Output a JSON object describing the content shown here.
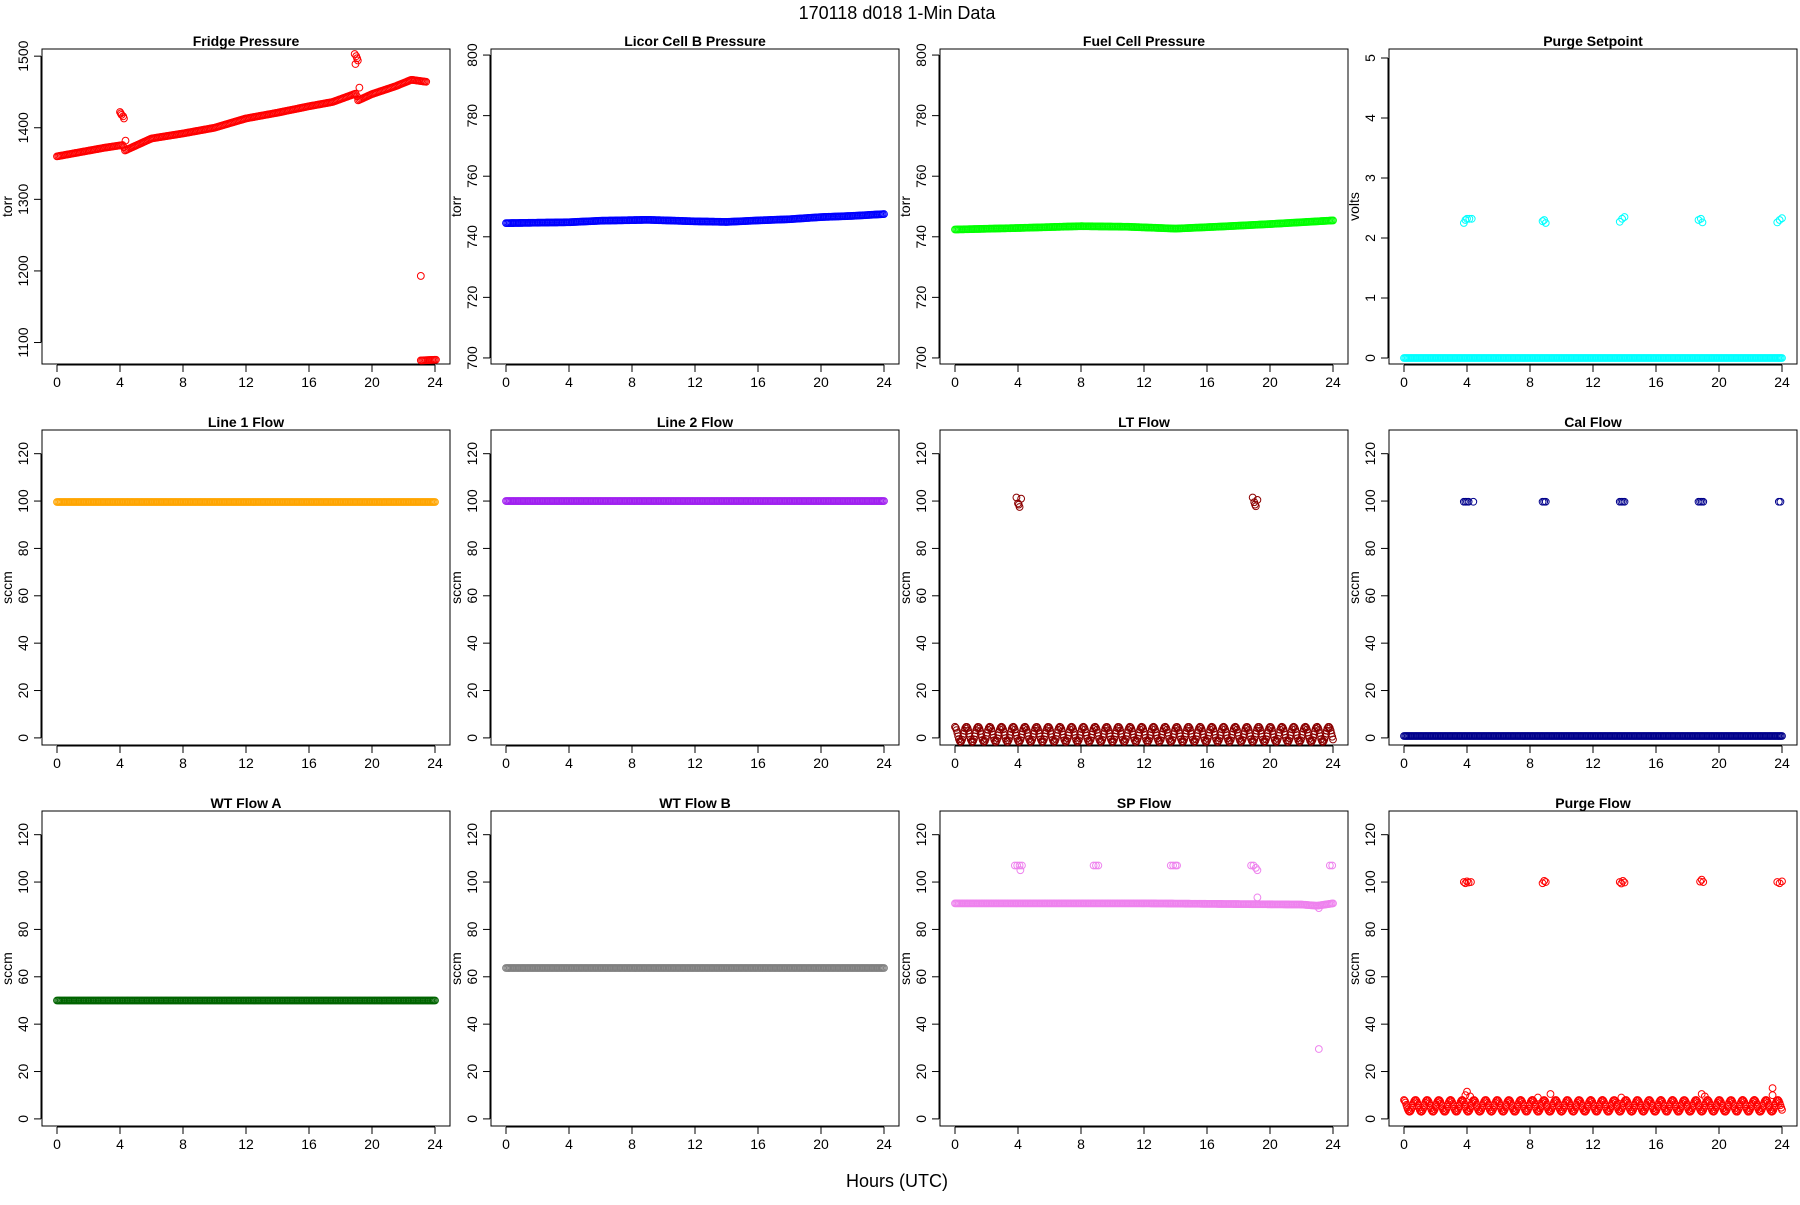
{
  "page": {
    "title": "170118    d018    1-Min Data",
    "xlabel": "Hours (UTC)"
  },
  "chart_data": [
    {
      "type": "scatter",
      "title": "Fridge Pressure",
      "ylabel": "torr",
      "xlim": [
        0,
        24
      ],
      "xticks": [
        0,
        4,
        8,
        12,
        16,
        20,
        24
      ],
      "ylim": [
        1070,
        1510
      ],
      "yticks": [
        1100,
        1200,
        1300,
        1400,
        1500
      ],
      "color": "#FF0000",
      "marker": "open-circle",
      "series": [
        {
          "mode": "dense",
          "points": [
            [
              0,
              1360
            ],
            [
              1.5,
              1366
            ],
            [
              3,
              1372
            ],
            [
              4.2,
              1376
            ],
            [
              4.3,
              1368
            ],
            [
              6,
              1385
            ],
            [
              8,
              1392
            ],
            [
              10,
              1400
            ],
            [
              12,
              1413
            ],
            [
              14,
              1421
            ],
            [
              16,
              1430
            ],
            [
              17.5,
              1436
            ],
            [
              19,
              1448
            ],
            [
              19.1,
              1438
            ],
            [
              20,
              1447
            ],
            [
              21.5,
              1458
            ],
            [
              22.5,
              1467
            ],
            [
              23.5,
              1464
            ]
          ]
        },
        {
          "mode": "dense",
          "points": [
            [
              23.1,
              1075
            ],
            [
              24.1,
              1076
            ]
          ]
        },
        {
          "mode": "points",
          "points": [
            [
              4,
              1422
            ],
            [
              4.05,
              1420
            ],
            [
              4.1,
              1418
            ],
            [
              4.2,
              1416
            ],
            [
              4.25,
              1413
            ],
            [
              4.35,
              1382
            ],
            [
              18.9,
              1503
            ],
            [
              19.0,
              1500
            ],
            [
              19.05,
              1497
            ],
            [
              19.1,
              1494
            ],
            [
              18.95,
              1489
            ],
            [
              19.2,
              1456
            ],
            [
              23.1,
              1193
            ]
          ]
        }
      ]
    },
    {
      "type": "scatter",
      "title": "Licor Cell B Pressure",
      "ylabel": "torr",
      "xlim": [
        0,
        24
      ],
      "xticks": [
        0,
        4,
        8,
        12,
        16,
        20,
        24
      ],
      "ylim": [
        698,
        802
      ],
      "yticks": [
        700,
        720,
        740,
        760,
        780,
        800
      ],
      "color": "#0000FF",
      "marker": "open-circle",
      "series": [
        {
          "mode": "dense",
          "points": [
            [
              0,
              744.5
            ],
            [
              4,
              744.8
            ],
            [
              6,
              745.3
            ],
            [
              9,
              745.6
            ],
            [
              12,
              745.1
            ],
            [
              14,
              744.9
            ],
            [
              16,
              745.4
            ],
            [
              18,
              745.8
            ],
            [
              20,
              746.5
            ],
            [
              22,
              746.9
            ],
            [
              24,
              747.5
            ]
          ]
        }
      ]
    },
    {
      "type": "scatter",
      "title": "Fuel Cell Pressure",
      "ylabel": "torr",
      "xlim": [
        0,
        24
      ],
      "xticks": [
        0,
        4,
        8,
        12,
        16,
        20,
        24
      ],
      "ylim": [
        698,
        802
      ],
      "yticks": [
        700,
        720,
        740,
        760,
        780,
        800
      ],
      "color": "#00FF00",
      "marker": "open-circle",
      "series": [
        {
          "mode": "dense",
          "points": [
            [
              0,
              742.4
            ],
            [
              4,
              742.9
            ],
            [
              8,
              743.5
            ],
            [
              11,
              743.3
            ],
            [
              14,
              742.7
            ],
            [
              17,
              743.4
            ],
            [
              20,
              744.2
            ],
            [
              24,
              745.4
            ]
          ]
        }
      ]
    },
    {
      "type": "scatter",
      "title": "Purge Setpoint",
      "ylabel": "volts",
      "xlim": [
        0,
        24
      ],
      "xticks": [
        0,
        4,
        8,
        12,
        16,
        20,
        24
      ],
      "ylim": [
        -0.1,
        5.15
      ],
      "yticks": [
        0,
        1,
        2,
        3,
        4,
        5
      ],
      "color": "#00FFFF",
      "marker": "open-circle",
      "series": [
        {
          "mode": "dense",
          "points": [
            [
              0,
              0
            ],
            [
              24,
              0
            ]
          ]
        },
        {
          "mode": "points",
          "points": [
            [
              3.8,
              2.25
            ],
            [
              3.9,
              2.3
            ],
            [
              4.0,
              2.32
            ],
            [
              4.15,
              2.32
            ],
            [
              4.3,
              2.32
            ],
            [
              8.8,
              2.28
            ],
            [
              8.9,
              2.3
            ],
            [
              9.0,
              2.25
            ],
            [
              13.7,
              2.27
            ],
            [
              13.85,
              2.32
            ],
            [
              14.0,
              2.35
            ],
            [
              18.7,
              2.3
            ],
            [
              18.85,
              2.32
            ],
            [
              18.95,
              2.26
            ],
            [
              23.7,
              2.26
            ],
            [
              23.85,
              2.3
            ],
            [
              24.0,
              2.33
            ]
          ]
        }
      ]
    },
    {
      "type": "scatter",
      "title": "Line 1 Flow",
      "ylabel": "sccm",
      "xlim": [
        0,
        24
      ],
      "xticks": [
        0,
        4,
        8,
        12,
        16,
        20,
        24
      ],
      "ylim": [
        -3,
        130
      ],
      "yticks": [
        0,
        20,
        40,
        60,
        80,
        100,
        120
      ],
      "color": "#FFA500",
      "marker": "open-circle",
      "series": [
        {
          "mode": "dense",
          "points": [
            [
              0,
              99.6
            ],
            [
              24,
              99.6
            ]
          ]
        }
      ]
    },
    {
      "type": "scatter",
      "title": "Line 2 Flow",
      "ylabel": "sccm",
      "xlim": [
        0,
        24
      ],
      "xticks": [
        0,
        4,
        8,
        12,
        16,
        20,
        24
      ],
      "ylim": [
        -3,
        130
      ],
      "yticks": [
        0,
        20,
        40,
        60,
        80,
        100,
        120
      ],
      "color": "#A020F0",
      "marker": "open-circle",
      "series": [
        {
          "mode": "dense",
          "points": [
            [
              0,
              100
            ],
            [
              24,
              100
            ]
          ]
        }
      ]
    },
    {
      "type": "scatter",
      "title": "LT Flow",
      "ylabel": "sccm",
      "xlim": [
        0,
        24
      ],
      "xticks": [
        0,
        4,
        8,
        12,
        16,
        20,
        24
      ],
      "ylim": [
        -3,
        130
      ],
      "yticks": [
        0,
        20,
        40,
        60,
        80,
        100,
        120
      ],
      "color": "#8B0000",
      "marker": "open-circle",
      "series": [
        {
          "mode": "band",
          "points": [
            [
              0,
              1.5
            ],
            [
              24,
              1.5
            ]
          ],
          "spread": 3.2
        },
        {
          "mode": "points",
          "points": [
            [
              3.9,
              101.5
            ],
            [
              4.0,
              99
            ],
            [
              4.1,
              97.5
            ],
            [
              4.2,
              101
            ],
            [
              4.05,
              98.5
            ],
            [
              18.9,
              101.5
            ],
            [
              19.0,
              99.5
            ],
            [
              19.1,
              97.8
            ],
            [
              19.2,
              100.5
            ],
            [
              19.05,
              98.5
            ]
          ]
        }
      ]
    },
    {
      "type": "scatter",
      "title": "Cal Flow",
      "ylabel": "sccm",
      "xlim": [
        0,
        24
      ],
      "xticks": [
        0,
        4,
        8,
        12,
        16,
        20,
        24
      ],
      "ylim": [
        -3,
        130
      ],
      "yticks": [
        0,
        20,
        40,
        60,
        80,
        100,
        120
      ],
      "color": "#00008B",
      "marker": "open-circle",
      "series": [
        {
          "mode": "dense",
          "points": [
            [
              0,
              0.8
            ],
            [
              24,
              0.8
            ]
          ]
        },
        {
          "mode": "points",
          "points": [
            [
              3.8,
              99.7
            ],
            [
              3.9,
              99.7
            ],
            [
              4.0,
              99.7
            ],
            [
              4.1,
              99.7
            ],
            [
              4.4,
              99.7
            ],
            [
              8.8,
              99.7
            ],
            [
              8.9,
              99.7
            ],
            [
              9.0,
              99.7
            ],
            [
              13.7,
              99.7
            ],
            [
              13.8,
              99.7
            ],
            [
              13.9,
              99.7
            ],
            [
              14.0,
              99.7
            ],
            [
              18.7,
              99.7
            ],
            [
              18.8,
              99.7
            ],
            [
              18.9,
              99.7
            ],
            [
              19.0,
              99.7
            ],
            [
              23.8,
              99.7
            ],
            [
              23.9,
              99.7
            ]
          ]
        }
      ]
    },
    {
      "type": "scatter",
      "title": "WT Flow A",
      "ylabel": "sccm",
      "xlim": [
        0,
        24
      ],
      "xticks": [
        0,
        4,
        8,
        12,
        16,
        20,
        24
      ],
      "ylim": [
        -3,
        130
      ],
      "yticks": [
        0,
        20,
        40,
        60,
        80,
        100,
        120
      ],
      "color": "#006400",
      "marker": "open-circle",
      "series": [
        {
          "mode": "dense",
          "points": [
            [
              0,
              50
            ],
            [
              24,
              50
            ]
          ]
        }
      ]
    },
    {
      "type": "scatter",
      "title": "WT Flow B",
      "ylabel": "sccm",
      "xlim": [
        0,
        24
      ],
      "xticks": [
        0,
        4,
        8,
        12,
        16,
        20,
        24
      ],
      "ylim": [
        -3,
        130
      ],
      "yticks": [
        0,
        20,
        40,
        60,
        80,
        100,
        120
      ],
      "color": "#808080",
      "marker": "open-circle",
      "series": [
        {
          "mode": "dense",
          "points": [
            [
              0,
              63.7
            ],
            [
              24,
              63.7
            ]
          ]
        }
      ]
    },
    {
      "type": "scatter",
      "title": "SP Flow",
      "ylabel": "sccm",
      "xlim": [
        0,
        24
      ],
      "xticks": [
        0,
        4,
        8,
        12,
        16,
        20,
        24
      ],
      "ylim": [
        -3,
        130
      ],
      "yticks": [
        0,
        20,
        40,
        60,
        80,
        100,
        120
      ],
      "color": "#EE82EE",
      "marker": "open-circle",
      "series": [
        {
          "mode": "dense",
          "points": [
            [
              0,
              91
            ],
            [
              12,
              91
            ],
            [
              22,
              90.5
            ],
            [
              23,
              90
            ],
            [
              24,
              91
            ]
          ]
        },
        {
          "mode": "points",
          "points": [
            [
              3.8,
              107
            ],
            [
              3.95,
              107
            ],
            [
              4.1,
              107
            ],
            [
              4.25,
              107
            ],
            [
              4.15,
              105
            ],
            [
              8.8,
              107
            ],
            [
              8.95,
              107
            ],
            [
              9.1,
              107
            ],
            [
              13.7,
              107
            ],
            [
              13.85,
              107
            ],
            [
              14.0,
              107
            ],
            [
              14.1,
              107
            ],
            [
              18.8,
              107
            ],
            [
              18.95,
              107
            ],
            [
              19.1,
              106
            ],
            [
              19.2,
              105
            ],
            [
              19.2,
              93.5
            ],
            [
              23.8,
              107
            ],
            [
              23.95,
              107
            ],
            [
              23.1,
              29.5
            ],
            [
              23.1,
              89
            ]
          ]
        }
      ]
    },
    {
      "type": "scatter",
      "title": "Purge Flow",
      "ylabel": "sccm",
      "xlim": [
        0,
        24
      ],
      "xticks": [
        0,
        4,
        8,
        12,
        16,
        20,
        24
      ],
      "ylim": [
        -3,
        130
      ],
      "yticks": [
        0,
        20,
        40,
        60,
        80,
        100,
        120
      ],
      "color": "#FF0000",
      "marker": "open-circle",
      "series": [
        {
          "mode": "band",
          "points": [
            [
              0,
              5.5
            ],
            [
              24,
              5.5
            ]
          ],
          "spread": 2.5
        },
        {
          "mode": "points",
          "points": [
            [
              3.8,
              100
            ],
            [
              3.9,
              99.5
            ],
            [
              4.0,
              100.3
            ],
            [
              4.1,
              99.8
            ],
            [
              4.25,
              100
            ],
            [
              8.8,
              99.5
            ],
            [
              8.9,
              100.5
            ],
            [
              9.0,
              100
            ],
            [
              13.7,
              100
            ],
            [
              13.8,
              99.4
            ],
            [
              13.9,
              100.5
            ],
            [
              14.0,
              99.8
            ],
            [
              18.8,
              100.2
            ],
            [
              18.9,
              101
            ],
            [
              19.0,
              100
            ],
            [
              23.7,
              100
            ],
            [
              23.85,
              99.5
            ],
            [
              24.0,
              100.3
            ],
            [
              3.9,
              10
            ],
            [
              4.0,
              11.5
            ],
            [
              4.2,
              9.5
            ],
            [
              8.5,
              9
            ],
            [
              9.3,
              10.5
            ],
            [
              13.8,
              9
            ],
            [
              18.9,
              10.5
            ],
            [
              19.1,
              9.5
            ],
            [
              23.4,
              10
            ],
            [
              23.4,
              13
            ]
          ]
        }
      ]
    }
  ]
}
